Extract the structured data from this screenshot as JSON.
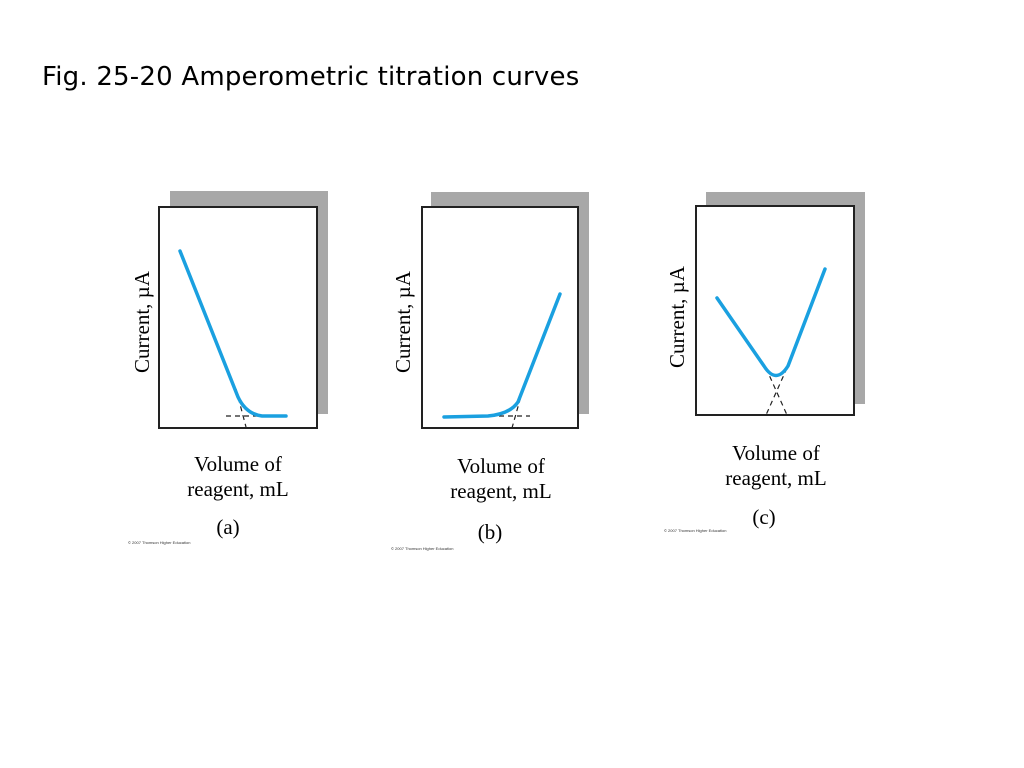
{
  "slide": {
    "title": "Fig. 25-20 Amperometric titration curves"
  },
  "colors": {
    "curve": "#1aa0e0",
    "frame": "#222222",
    "shadow": "#a8a8a8",
    "dashed": "#222222"
  },
  "panels": [
    {
      "id": "a",
      "ylabel": "Current, µA",
      "xlabel_line1": "Volume of",
      "xlabel_line2": "reagent, mL",
      "panel_label": "(a)",
      "copyright": "© 2007 Thomson Higher Education",
      "curve_shape": "decreasing then flat"
    },
    {
      "id": "b",
      "ylabel": "Current, µA",
      "xlabel_line1": "Volume of",
      "xlabel_line2": "reagent, mL",
      "panel_label": "(b)",
      "copyright": "© 2007 Thomson Higher Education",
      "curve_shape": "flat then increasing"
    },
    {
      "id": "c",
      "ylabel": "Current, µA",
      "xlabel_line1": "Volume of",
      "xlabel_line2": "reagent, mL",
      "panel_label": "(c)",
      "copyright": "© 2007 Thomson Higher Education",
      "curve_shape": "V-shaped"
    }
  ]
}
